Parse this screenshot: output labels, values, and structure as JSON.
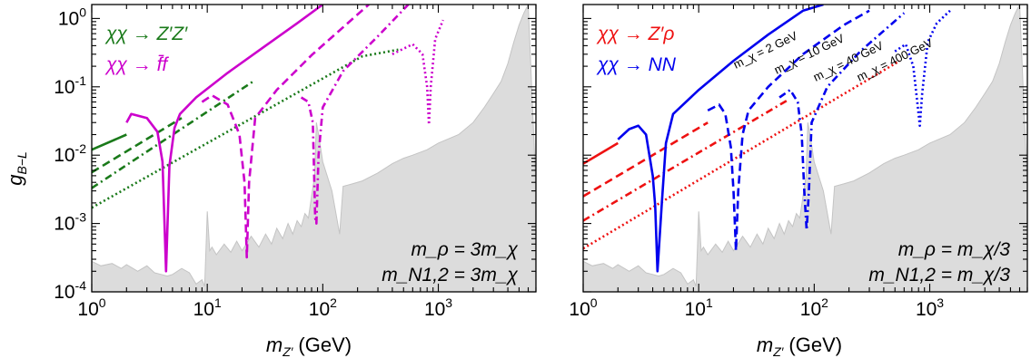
{
  "ylabel_main": "g",
  "ylabel_sub": "B−L",
  "xlabel_main": "m",
  "xlabel_sub": "Z′",
  "xlabel_unit": "(GeV)",
  "colors": {
    "green": "#1a7a1a",
    "magenta": "#cc00cc",
    "red": "#ee1111",
    "blue": "#0000ee",
    "excluded": "#dcdcdc",
    "excluded_line": "#c4c4c4"
  },
  "chart_data": [
    {
      "type": "line",
      "panel": "left",
      "xscale": "log",
      "yscale": "log",
      "xlim": [
        1,
        7000
      ],
      "ylim": [
        0.0001,
        1.6
      ],
      "x_ticks": [
        "10^0",
        "10^1",
        "10^2",
        "10^3"
      ],
      "y_ticks": [
        "10^-4",
        "10^-3",
        "10^-2",
        "10^-1",
        "10^0"
      ],
      "legend": [
        {
          "text": "χχ → Z′Z′",
          "color": "green"
        },
        {
          "text": "χχ → f̄f",
          "color": "magenta"
        }
      ],
      "annotations": [
        "m_ρ = 3m_χ",
        "m_N1,2 = 3m_χ"
      ],
      "series": [
        {
          "color": "green",
          "style": "solid",
          "x": [
            1.0,
            2.0
          ],
          "y": [
            0.012,
            0.02
          ]
        },
        {
          "color": "green",
          "style": "dashed",
          "x": [
            1.0,
            6.0
          ],
          "y": [
            0.0056,
            0.035
          ]
        },
        {
          "color": "green",
          "style": "dashdot",
          "x": [
            1.0,
            25.0
          ],
          "y": [
            0.0033,
            0.12
          ]
        },
        {
          "color": "green",
          "style": "dotted",
          "x": [
            1.0,
            220.0,
            450.0
          ],
          "y": [
            0.0017,
            0.28,
            0.35
          ]
        },
        {
          "color": "magenta",
          "style": "solid",
          "x": [
            2.0,
            2.2,
            3.0,
            3.7,
            4.1,
            4.4,
            4.7,
            5.2,
            5.8,
            8,
            15,
            30,
            60,
            100
          ],
          "y": [
            0.03,
            0.04,
            0.035,
            0.022,
            0.008,
            0.0002,
            0.007,
            0.025,
            0.04,
            0.07,
            0.16,
            0.37,
            0.85,
            1.6
          ]
        },
        {
          "color": "magenta",
          "style": "dashed",
          "x": [
            9,
            11,
            15,
            19,
            21,
            22,
            23,
            26,
            40,
            80,
            160,
            250
          ],
          "y": [
            0.06,
            0.075,
            0.055,
            0.02,
            0.004,
            0.00032,
            0.004,
            0.035,
            0.09,
            0.29,
            0.82,
            1.6
          ]
        },
        {
          "color": "magenta",
          "style": "dashdot",
          "x": [
            65,
            75,
            82,
            86,
            88,
            92,
            100,
            150,
            300,
            550
          ],
          "y": [
            0.07,
            0.06,
            0.03,
            0.0012,
            0.001,
            0.01,
            0.05,
            0.17,
            0.55,
            1.6
          ]
        },
        {
          "color": "magenta",
          "style": "dotted",
          "x": [
            400,
            600,
            730,
            800,
            830,
            860,
            940,
            1100
          ],
          "y": [
            0.3,
            0.42,
            0.3,
            0.1,
            0.028,
            0.1,
            0.5,
            0.95
          ]
        }
      ]
    },
    {
      "type": "line",
      "panel": "right",
      "xscale": "log",
      "yscale": "log",
      "xlim": [
        1,
        7000
      ],
      "ylim": [
        0.0001,
        1.6
      ],
      "x_ticks": [
        "10^0",
        "10^1",
        "10^2",
        "10^3"
      ],
      "y_ticks": [],
      "legend": [
        {
          "text": "χχ → Z′ρ",
          "color": "red"
        },
        {
          "text": "χχ → NN",
          "color": "blue"
        }
      ],
      "annotations": [
        "m_ρ = m_χ/3",
        "m_N1,2 = m_χ/3"
      ],
      "curve_labels": [
        {
          "text": "m_χ = 2 GeV",
          "color": "#000000"
        },
        {
          "text": "m_χ = 10 GeV",
          "color": "#000000"
        },
        {
          "text": "m_χ = 40 GeV",
          "color": "#000000"
        },
        {
          "text": "m_χ = 400 GeV",
          "color": "#000000"
        }
      ],
      "series": [
        {
          "color": "red",
          "style": "solid",
          "x": [
            1.0,
            2.0
          ],
          "y": [
            0.0075,
            0.015
          ]
        },
        {
          "color": "red",
          "style": "dashed",
          "x": [
            1.0,
            12.0
          ],
          "y": [
            0.0025,
            0.03
          ]
        },
        {
          "color": "red",
          "style": "dashdot",
          "x": [
            1.0,
            60.0
          ],
          "y": [
            0.0011,
            0.065
          ]
        },
        {
          "color": "red",
          "style": "dotted",
          "x": [
            1.0,
            550.0
          ],
          "y": [
            0.00043,
            0.24
          ]
        },
        {
          "color": "blue",
          "style": "solid",
          "x": [
            2.0,
            2.5,
            3.0,
            3.5,
            4.0,
            4.2,
            4.4,
            4.8,
            5.2,
            6,
            10,
            20,
            40,
            80,
            120
          ],
          "y": [
            0.017,
            0.024,
            0.027,
            0.02,
            0.005,
            0.0018,
            0.0002,
            0.002,
            0.015,
            0.04,
            0.09,
            0.24,
            0.58,
            1.3,
            1.6
          ]
        },
        {
          "color": "blue",
          "style": "dashed",
          "x": [
            12,
            15,
            17,
            19,
            20,
            21,
            22,
            24,
            27,
            40,
            80,
            180,
            300
          ],
          "y": [
            0.045,
            0.055,
            0.04,
            0.013,
            0.003,
            0.0004,
            0.003,
            0.02,
            0.045,
            0.1,
            0.3,
            0.8,
            1.3
          ]
        },
        {
          "color": "blue",
          "style": "dashdot",
          "x": [
            50,
            62,
            72,
            78,
            82,
            86,
            90,
            95,
            130,
            250,
            600
          ],
          "y": [
            0.07,
            0.09,
            0.06,
            0.02,
            0.003,
            0.0008,
            0.003,
            0.03,
            0.1,
            0.33,
            1.2
          ]
        },
        {
          "color": "blue",
          "style": "dotted",
          "x": [
            500,
            620,
            720,
            780,
            820,
            860,
            960,
            1150,
            1500
          ],
          "y": [
            0.33,
            0.42,
            0.2,
            0.06,
            0.027,
            0.08,
            0.45,
            0.85,
            1.3
          ]
        }
      ]
    }
  ]
}
